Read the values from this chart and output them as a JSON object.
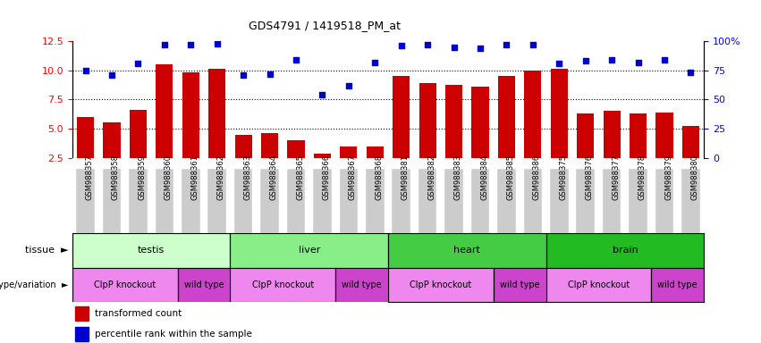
{
  "title": "GDS4791 / 1419518_PM_at",
  "samples": [
    "GSM988357",
    "GSM988358",
    "GSM988359",
    "GSM988360",
    "GSM988361",
    "GSM988362",
    "GSM988363",
    "GSM988364",
    "GSM988365",
    "GSM988366",
    "GSM988367",
    "GSM988368",
    "GSM988381",
    "GSM988382",
    "GSM988383",
    "GSM988384",
    "GSM988385",
    "GSM988386",
    "GSM988375",
    "GSM988376",
    "GSM988377",
    "GSM988378",
    "GSM988379",
    "GSM988380"
  ],
  "bar_values": [
    6.0,
    5.5,
    6.6,
    10.5,
    9.8,
    10.15,
    4.5,
    4.65,
    4.0,
    2.85,
    3.5,
    3.5,
    9.55,
    8.9,
    8.75,
    8.6,
    9.5,
    10.0,
    10.1,
    6.3,
    6.5,
    6.3,
    6.4,
    5.25
  ],
  "percentile_values": [
    75,
    71,
    81,
    97,
    97,
    98,
    71,
    72,
    84,
    54,
    62,
    82,
    96,
    97,
    95,
    94,
    97,
    97,
    81,
    83,
    84,
    82,
    84,
    73
  ],
  "bar_color": "#cc0000",
  "dot_color": "#0000cc",
  "ylim_left": [
    2.5,
    12.5
  ],
  "ylim_right": [
    0,
    100
  ],
  "yticks_left": [
    2.5,
    5.0,
    7.5,
    10.0,
    12.5
  ],
  "yticks_right": [
    0,
    25,
    50,
    75,
    100
  ],
  "ytick_labels_right": [
    "0",
    "25",
    "50",
    "75",
    "100%"
  ],
  "hlines": [
    5.0,
    7.5,
    10.0
  ],
  "tissue_groups": [
    {
      "label": "testis",
      "start": 0,
      "end": 6,
      "color": "#ccffcc"
    },
    {
      "label": "liver",
      "start": 6,
      "end": 12,
      "color": "#88ee88"
    },
    {
      "label": "heart",
      "start": 12,
      "end": 18,
      "color": "#44cc44"
    },
    {
      "label": "brain",
      "start": 18,
      "end": 24,
      "color": "#22bb22"
    }
  ],
  "genotype_groups": [
    {
      "label": "ClpP knockout",
      "start": 0,
      "end": 4,
      "color": "#ee88ee"
    },
    {
      "label": "wild type",
      "start": 4,
      "end": 6,
      "color": "#cc44cc"
    },
    {
      "label": "ClpP knockout",
      "start": 6,
      "end": 10,
      "color": "#ee88ee"
    },
    {
      "label": "wild type",
      "start": 10,
      "end": 12,
      "color": "#cc44cc"
    },
    {
      "label": "ClpP knockout",
      "start": 12,
      "end": 16,
      "color": "#ee88ee"
    },
    {
      "label": "wild type",
      "start": 16,
      "end": 18,
      "color": "#cc44cc"
    },
    {
      "label": "ClpP knockout",
      "start": 18,
      "end": 22,
      "color": "#ee88ee"
    },
    {
      "label": "wild type",
      "start": 22,
      "end": 24,
      "color": "#cc44cc"
    }
  ],
  "legend_bar_label": "transformed count",
  "legend_dot_label": "percentile rank within the sample",
  "tissue_label": "tissue",
  "genotype_label": "genotype/variation",
  "bg_color": "#ffffff",
  "tick_bg_color": "#cccccc",
  "bar_width": 0.65
}
